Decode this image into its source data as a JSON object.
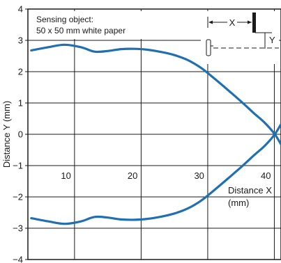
{
  "chart_data": {
    "type": "line",
    "ylabel": "Distance Y (mm)",
    "xlabel_line1": "Distance X",
    "xlabel_line2": "(mm)",
    "xlim": [
      3,
      41
    ],
    "ylim": [
      -4,
      4
    ],
    "grid": true,
    "x_ticks": [
      10,
      20,
      30,
      40
    ],
    "y_ticks": [
      4,
      3,
      2,
      1,
      0,
      -1,
      -2,
      -3,
      -4
    ],
    "y_tick_labels": [
      "4",
      "3",
      "2",
      "1",
      "0",
      "−1",
      "−2",
      "−3",
      "−4"
    ],
    "series_color": "#1f6fb2",
    "series": [
      {
        "x": [
          3.5,
          6,
          8.5,
          11,
          13,
          15,
          17,
          19,
          21,
          23,
          25,
          27,
          29,
          31,
          33,
          35,
          37,
          38.5,
          40,
          41
        ],
        "y": [
          2.68,
          2.78,
          2.86,
          2.78,
          2.64,
          2.66,
          2.72,
          2.73,
          2.7,
          2.63,
          2.53,
          2.37,
          2.12,
          1.78,
          1.42,
          1.05,
          0.66,
          0.38,
          0.02,
          -0.32
        ]
      },
      {
        "x": [
          3.5,
          6,
          8.5,
          11,
          13,
          15,
          17,
          19,
          21,
          23,
          25,
          27,
          29,
          31,
          33,
          35,
          37,
          38.5,
          40,
          41
        ],
        "y": [
          -2.68,
          -2.78,
          -2.86,
          -2.78,
          -2.64,
          -2.66,
          -2.72,
          -2.73,
          -2.7,
          -2.63,
          -2.53,
          -2.37,
          -2.12,
          -1.78,
          -1.42,
          -1.05,
          -0.66,
          -0.38,
          -0.02,
          0.32
        ]
      }
    ],
    "annotation": {
      "line1": "Sensing object:",
      "line2": "50 x 50 mm white paper"
    },
    "inset": {
      "x_label": "X",
      "y_label": "Y"
    }
  }
}
